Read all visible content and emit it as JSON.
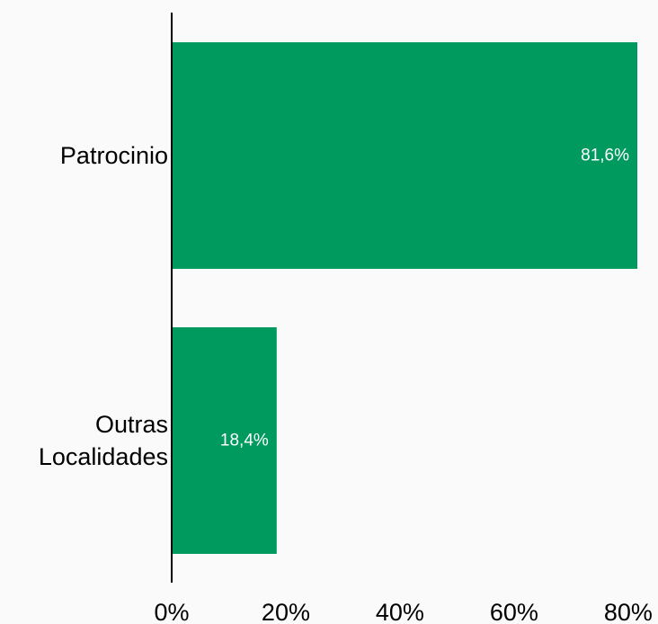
{
  "chart_data": {
    "type": "bar",
    "orientation": "horizontal",
    "categories": [
      [
        "Patrocinio"
      ],
      [
        "Outras",
        "Localidades"
      ]
    ],
    "values": [
      81.6,
      18.4
    ],
    "data_labels": [
      "81,6%",
      "18,4%"
    ],
    "x_ticks": [
      0,
      20,
      40,
      60,
      80
    ],
    "x_tick_labels": [
      "0%",
      "20%",
      "40%",
      "60%",
      "80%"
    ],
    "xlim": [
      0,
      81.6
    ],
    "grid": false,
    "bar_color": "#009a5e",
    "label_color": "#ffffff"
  }
}
